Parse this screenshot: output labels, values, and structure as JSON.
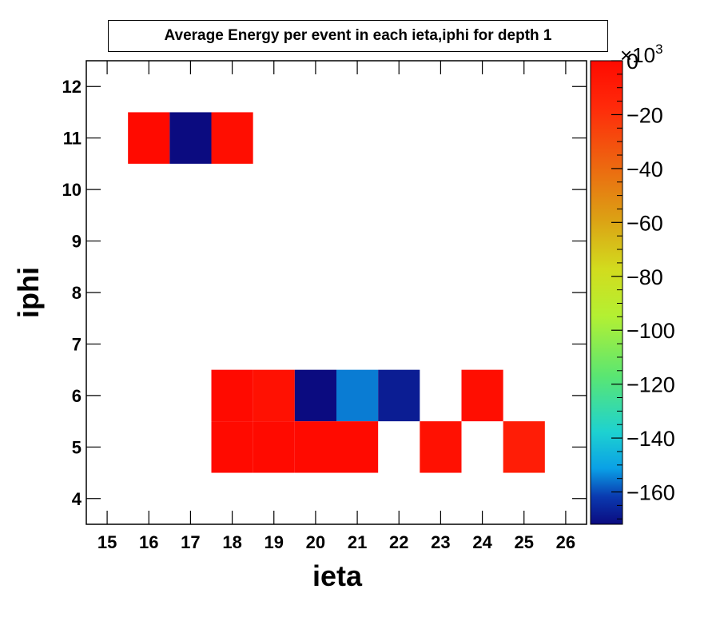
{
  "chart_data": {
    "type": "heatmap",
    "title": "Average Energy per event in each ieta,iphi for depth 1",
    "xlabel": "ieta",
    "ylabel": "iphi",
    "xlim": [
      14.5,
      26.5
    ],
    "ylim": [
      3.5,
      12.5
    ],
    "x_ticks": [
      "15",
      "16",
      "17",
      "18",
      "19",
      "20",
      "21",
      "22",
      "23",
      "24",
      "25",
      "26"
    ],
    "y_ticks": [
      "4",
      "5",
      "6",
      "7",
      "8",
      "9",
      "10",
      "11",
      "12"
    ],
    "colorbar": {
      "range": [
        -172,
        0
      ],
      "ticks": [
        "0",
        "−20",
        "−40",
        "−60",
        "−80",
        "−100",
        "−120",
        "−140",
        "−160"
      ],
      "tick_values": [
        0,
        -20,
        -40,
        -60,
        -80,
        -100,
        -120,
        -140,
        -160
      ],
      "exponent_label": "×10",
      "exponent_power": "3"
    },
    "cells": [
      {
        "ieta": 16,
        "iphi": 11,
        "value": 0
      },
      {
        "ieta": 17,
        "iphi": 11,
        "value": -172
      },
      {
        "ieta": 18,
        "iphi": 11,
        "value": -2
      },
      {
        "ieta": 18,
        "iphi": 6,
        "value": 0
      },
      {
        "ieta": 19,
        "iphi": 6,
        "value": -4
      },
      {
        "ieta": 20,
        "iphi": 6,
        "value": -172
      },
      {
        "ieta": 21,
        "iphi": 6,
        "value": -155
      },
      {
        "ieta": 22,
        "iphi": 6,
        "value": -168
      },
      {
        "ieta": 24,
        "iphi": 6,
        "value": -2
      },
      {
        "ieta": 18,
        "iphi": 5,
        "value": 0
      },
      {
        "ieta": 19,
        "iphi": 5,
        "value": 0
      },
      {
        "ieta": 20,
        "iphi": 5,
        "value": 0
      },
      {
        "ieta": 21,
        "iphi": 5,
        "value": 0
      },
      {
        "ieta": 23,
        "iphi": 5,
        "value": -4
      },
      {
        "ieta": 25,
        "iphi": 5,
        "value": -10
      }
    ]
  }
}
